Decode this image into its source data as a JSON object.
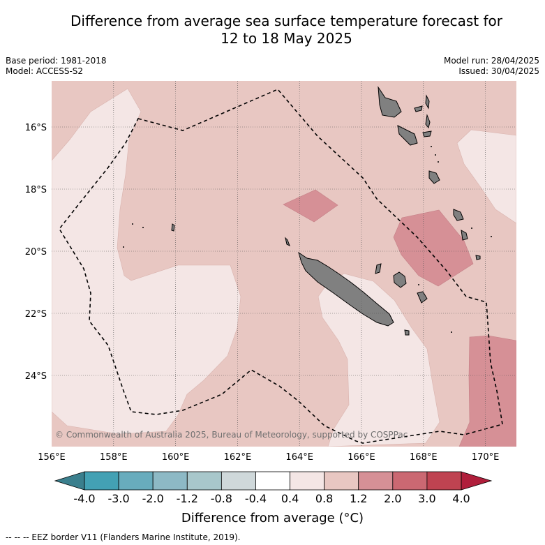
{
  "header": {
    "title_line1": "Difference from average sea surface temperature forecast for",
    "title_line2": "12 to 18 May 2025",
    "base_period": "Base period: 1981-2018",
    "model": "Model: ACCESS-S2",
    "model_run": "Model run: 28/04/2025",
    "issued": "Issued: 30/04/2025"
  },
  "map": {
    "lon_labels": [
      "156°E",
      "158°E",
      "160°E",
      "162°E",
      "164°E",
      "166°E",
      "168°E",
      "170°E"
    ],
    "lat_labels": [
      "16°S",
      "18°S",
      "20°S",
      "22°S",
      "24°S"
    ],
    "copyright": "© Commonwealth of Australia 2025, Bureau of Meteorology, supported by COSPPac",
    "colors": {
      "band_0_4_0_8": "#f4e6e5",
      "band_0_8_1_2": "#e8c7c2",
      "band_1_2_2_0": "#d69096",
      "land": "#808080"
    }
  },
  "colorbar": {
    "ticks": [
      "-4.0",
      "-3.0",
      "-2.0",
      "-1.2",
      "-0.8",
      "-0.4",
      "0.4",
      "0.8",
      "1.2",
      "2.0",
      "3.0",
      "4.0"
    ],
    "colors": [
      "#43a1b4",
      "#68acbd",
      "#8db9c5",
      "#a8c7cb",
      "#cfd8da",
      "#ffffff",
      "#f4e6e5",
      "#e8c7c2",
      "#d69096",
      "#cb6872",
      "#bf4351"
    ],
    "under_color": "#3a7f8d",
    "over_color": "#b01e3b",
    "label": "Difference from average (°C)"
  },
  "footnote": "--  --  -- EEZ border V11 (Flanders Marine Institute, 2019)."
}
